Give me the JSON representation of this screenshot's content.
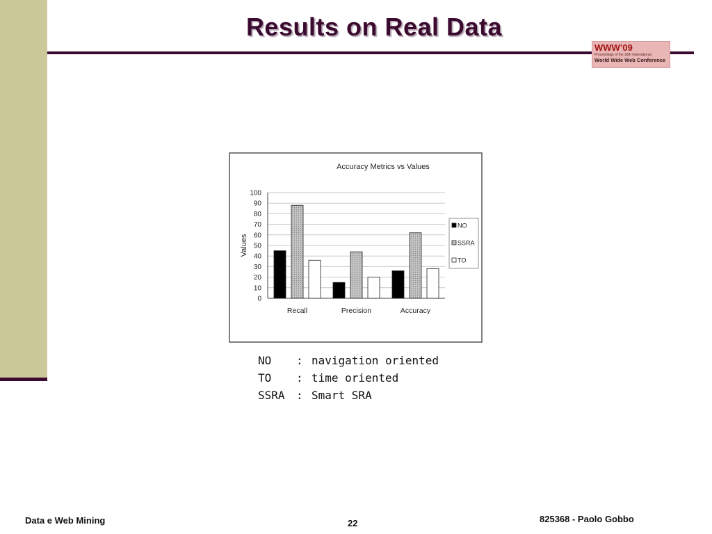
{
  "slide": {
    "title": "Results on Real Data",
    "logo": {
      "main": "WWW’09",
      "sub": "Proceedings of the 18th International",
      "sub2": "World Wide Web Conference"
    },
    "legend_text": [
      {
        "abbr": "NO",
        "sep": ":",
        "desc": "navigation oriented"
      },
      {
        "abbr": "TO",
        "sep": ":",
        "desc": "time oriented"
      },
      {
        "abbr": "SSRA",
        "sep": ":",
        "desc": "Smart SRA"
      }
    ],
    "footer": {
      "left": "Data e Web Mining",
      "center": "22",
      "right": "825368 - Paolo Gobbo"
    },
    "colors": {
      "accent": "#3b0a2f",
      "sidebar": "#cbc99a"
    }
  },
  "chart_data": {
    "type": "bar",
    "title": "Accuracy Metrics vs Values",
    "xlabel": "",
    "ylabel": "Values",
    "categories": [
      "Recall",
      "Precision",
      "Accuracy"
    ],
    "series": [
      {
        "name": "NO",
        "values": [
          45,
          15,
          26
        ],
        "fill": "#000000"
      },
      {
        "name": "SSRA",
        "values": [
          88,
          44,
          62
        ],
        "fill": "#bdbdbd"
      },
      {
        "name": "TO",
        "values": [
          36,
          20,
          28
        ],
        "fill": "#ffffff"
      }
    ],
    "ylim": [
      0,
      100
    ],
    "yticks": [
      "0",
      "10",
      "20",
      "30",
      "40",
      "50",
      "60",
      "70",
      "80",
      "90",
      "100"
    ],
    "grid": true,
    "legend_position": "right"
  }
}
